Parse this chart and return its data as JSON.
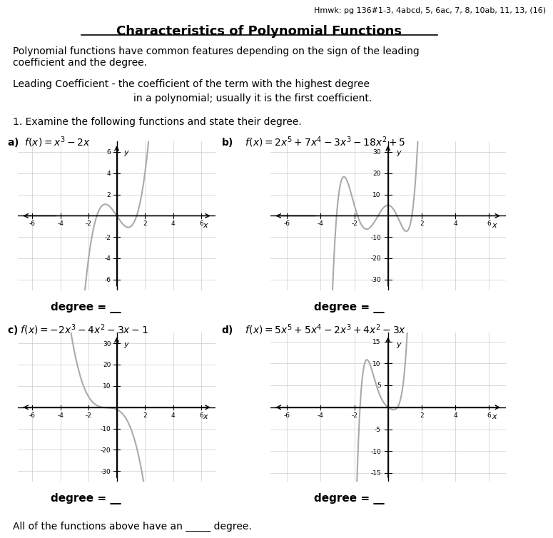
{
  "hmwk_text": "Hmwk: pg 136#1-3, 4abcd, 5, 6ac, 7, 8, 10ab, 11, 13, (16)",
  "title": "Characteristics of Polynomial Functions",
  "para1": "Polynomial functions have common features depending on the sign of the leading\ncoefficient and the degree.",
  "leading_line1": "Leading Coefficient - the coefficient of the term with the highest degree",
  "leading_line2": "in a polynomial; usually it is the first coefficient.",
  "question1": "1. Examine the following functions and state their degree.",
  "degree_label": "degree = __",
  "final_text": "All of the functions above have an _____ degree.",
  "graph_a": {
    "xlim": [
      -7,
      7
    ],
    "ylim": [
      -7,
      7
    ],
    "xticks": [
      -6,
      -4,
      -2,
      2,
      4,
      6
    ],
    "yticks": [
      -6,
      -4,
      -2,
      2,
      4,
      6
    ]
  },
  "graph_b": {
    "xlim": [
      -7,
      7
    ],
    "ylim": [
      -35,
      35
    ],
    "xticks": [
      -6,
      -4,
      -2,
      2,
      4,
      6
    ],
    "yticks": [
      -30,
      -20,
      -10,
      10,
      20,
      30
    ]
  },
  "graph_c": {
    "xlim": [
      -7,
      7
    ],
    "ylim": [
      -35,
      35
    ],
    "xticks": [
      -6,
      -4,
      -2,
      2,
      4,
      6
    ],
    "yticks": [
      -30,
      -20,
      -10,
      10,
      20,
      30
    ]
  },
  "graph_d": {
    "xlim": [
      -7,
      7
    ],
    "ylim": [
      -17,
      17
    ],
    "xticks": [
      -6,
      -4,
      -2,
      2,
      4,
      6
    ],
    "yticks": [
      -15,
      -10,
      -5,
      5,
      10,
      15
    ]
  },
  "curve_color": "#aaaaaa",
  "grid_color": "#cccccc",
  "axis_color": "#000000"
}
